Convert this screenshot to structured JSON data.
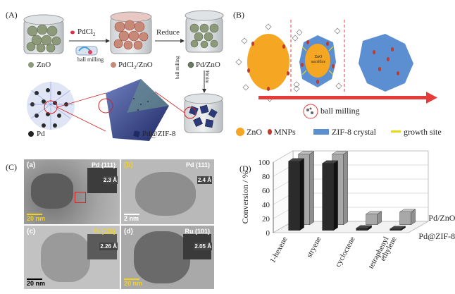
{
  "panelA": {
    "label": "(A)",
    "zno": "ZnO",
    "pdcl2": "PdCl",
    "pdcl2_sub": "2",
    "ball_milling": "ball milling",
    "pdcl2_zno": "PdCl",
    "pdcl2_zno_sub": "2",
    "pdcl2_zno_rest": "/ZnO",
    "reduce": "Reduce",
    "pd_zno": "Pd/ZnO",
    "ball_milling_vert": "ball milling",
    "hmim": "Hmim",
    "pd": "Pd",
    "pd_zif8": "Pd@ZIF-8"
  },
  "panelB": {
    "label": "(B)",
    "zno_sacrifice": "ZnO sacrifice",
    "ball_milling": "ball milling",
    "legend": [
      "ZnO",
      "MNPs",
      "ZIF-8 crystal",
      "growth site"
    ],
    "colors": {
      "zno": "#f5a623",
      "mnp": "#c0392b",
      "zif": "#5b8fd1",
      "growth": "#e8d81c",
      "arrow": "#e53b3b"
    }
  },
  "panelC": {
    "label": "(C)",
    "images": [
      {
        "tag": "(a)",
        "plane": "Pd (111)",
        "spacing": "2.3 Å",
        "scale": "20 nm"
      },
      {
        "tag": "(b)",
        "plane": "Pd (111)",
        "spacing": "2.4 Å",
        "scale": "2 nm"
      },
      {
        "tag": "(c)",
        "plane": "Pt (111)",
        "spacing": "2.26 Å",
        "scale": "20 nm"
      },
      {
        "tag": "(d)",
        "plane": "Ru (101)",
        "spacing": "2.05 Å",
        "scale": "20 nm"
      }
    ],
    "inset_scale": "2 nm"
  },
  "panelD": {
    "label": "(D)",
    "chart_data": {
      "type": "bar",
      "ylabel": "Conversion / %",
      "ylim": [
        0,
        100
      ],
      "yticks": [
        0,
        20,
        40,
        60,
        80,
        100
      ],
      "categories": [
        "1-hexene",
        "stryene",
        "cycloctene",
        "tetraphenyl ethylene"
      ],
      "series": [
        {
          "name": "Pd@ZIF-8",
          "values": [
            98,
            95,
            3,
            2
          ],
          "color": "#2b2b2b"
        },
        {
          "name": "Pd/ZnO",
          "values": [
            100,
            100,
            15,
            18
          ],
          "color": "#a8a8a8"
        }
      ],
      "grid": true
    }
  }
}
